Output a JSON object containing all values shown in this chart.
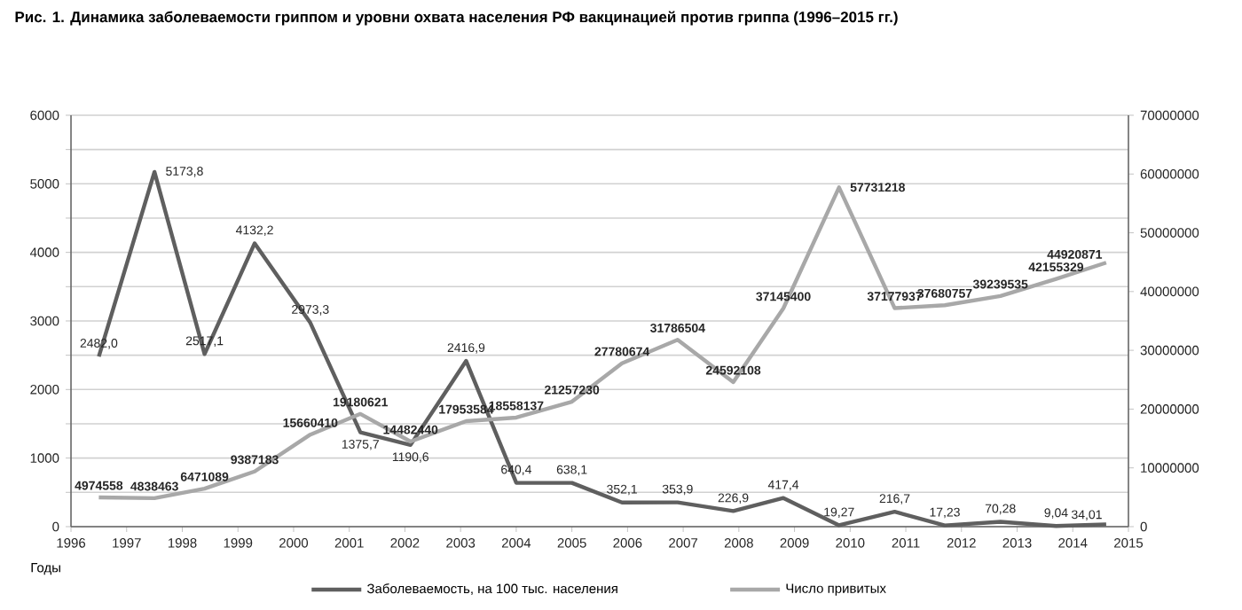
{
  "chart_data": {
    "type": "line",
    "title": "Рис. 1. Динамика заболеваемости гриппом и уровни охвата населения РФ вакцинацией против гриппа (1996–2015 гг.)",
    "xlabel": "Годы",
    "x": [
      1996.5,
      1997.5,
      1998.4,
      1999.3,
      2000.3,
      2001.2,
      2002.1,
      2003.1,
      2004.0,
      2005.0,
      2005.9,
      2006.9,
      2007.9,
      2008.8,
      2009.8,
      2010.8,
      2011.7,
      2012.7,
      2013.7,
      2014.6
    ],
    "xlim": [
      1996,
      2015
    ],
    "xticks": [
      1996,
      1997,
      1998,
      1999,
      2000,
      2001,
      2002,
      2003,
      2004,
      2005,
      2006,
      2007,
      2008,
      2009,
      2010,
      2011,
      2012,
      2013,
      2014,
      2015
    ],
    "ylim": [
      0,
      6000
    ],
    "yticks": [
      0,
      {
        "value": 500,
        "label": null
      },
      1000,
      {
        "value": 1500,
        "label": null
      },
      2000,
      {
        "value": 2500,
        "label": null
      },
      3000,
      {
        "value": 3500,
        "label": null
      },
      4000,
      {
        "value": 4500,
        "label": null
      },
      5000,
      {
        "value": 5500,
        "label": null
      },
      6000
    ],
    "y2lim": [
      0,
      70000000
    ],
    "y2ticks": [
      0,
      10000000,
      20000000,
      30000000,
      40000000,
      50000000,
      60000000,
      70000000
    ],
    "grid": "y",
    "legend": "bottom",
    "series": [
      {
        "name": "Заболеваемость, на 100 тыс. населения",
        "color": "#5f5f5f",
        "values": [
          2482.0,
          5173.8,
          2517.1,
          4132.2,
          2973.3,
          1375.7,
          1190.6,
          2416.9,
          640.4,
          638.1,
          352.1,
          353.9,
          226.9,
          417.4,
          19.27,
          216.7,
          17.23,
          70.28,
          9.04,
          34.01
        ],
        "value_labels": [
          "2482,0",
          "5173,8",
          "2517,1",
          "4132,2",
          "2973,3",
          "1375,7",
          "1190,6",
          "2416,9",
          "640,4",
          "638,1",
          "352,1",
          "353,9",
          "226,9",
          "417,4",
          "19,27",
          "216,7",
          "17,23",
          "70,28",
          "9,04",
          "34,01"
        ]
      },
      {
        "name": "Число привитых",
        "color": "#a8a8a8",
        "axis": "y2",
        "values": [
          4974558,
          4838463,
          6471089,
          9387183,
          15660410,
          19180621,
          14482440,
          17953584,
          18558137,
          21257230,
          27780674,
          31786504,
          24592108,
          37145400,
          57731218,
          37177937,
          37680757,
          39239535,
          42155329,
          44920871
        ],
        "value_labels": [
          "4974558",
          "4838463",
          "6471089",
          "9387183",
          "15660410",
          "19180621",
          "14482440",
          "17953584",
          "18558137",
          "21257230",
          "27780674",
          "31786504",
          "24592108",
          "37145400",
          "57731218",
          "37177937",
          "37680757",
          "39239535",
          "42155329",
          "44920871"
        ]
      }
    ]
  }
}
